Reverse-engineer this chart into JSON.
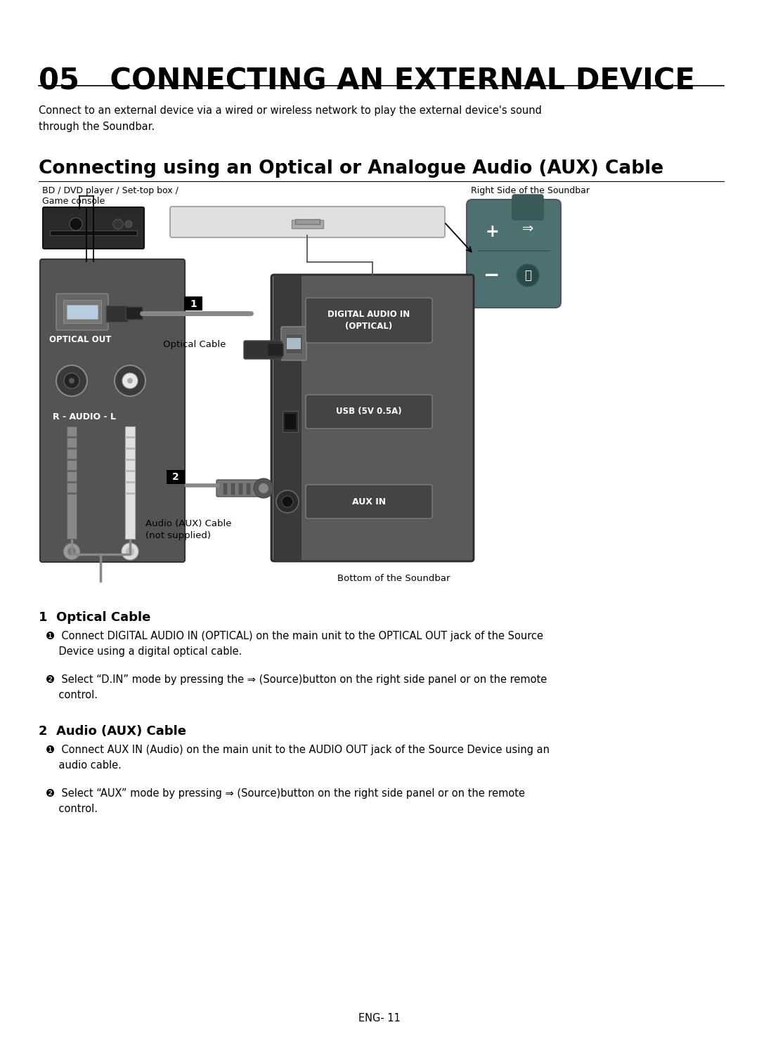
{
  "title": "05   CONNECTING AN EXTERNAL DEVICE",
  "subtitle": "Connecting using an Optical or Analogue Audio (AUX) Cable",
  "intro_text": "Connect to an external device via a wired or wireless network to play the external device's sound\nthrough the Soundbar.",
  "label_bd": "BD / DVD player / Set-top box /",
  "label_game": "Game console",
  "label_right_side": "Right Side of the Soundbar",
  "label_bottom": "Bottom of the Soundbar",
  "label_optical_out": "OPTICAL OUT",
  "label_optical_cable": "Optical Cable",
  "label_aux_cable": "Audio (AUX) Cable\n(not supplied)",
  "label_digital_audio": "DIGITAL AUDIO IN\n(OPTICAL)",
  "label_usb": "USB (5V 0.5A)",
  "label_aux_in": "AUX IN",
  "label_r_audio_l": "R - AUDIO - L",
  "section1_title": "1  Optical Cable",
  "section1_step1": "❶  Connect DIGITAL AUDIO IN (OPTICAL) on the main unit to the OPTICAL OUT jack of the Source\n    Device using a digital optical cable.",
  "section1_step2": "❷  Select “D.IN” mode by pressing the ⇒ (Source)button on the right side panel or on the remote\n    control.",
  "section2_title": "2  Audio (AUX) Cable",
  "section2_step1": "❶  Connect AUX IN (Audio) on the main unit to the AUDIO OUT jack of the Source Device using an\n    audio cable.",
  "section2_step2": "❷  Select “AUX” mode by pressing ⇒ (Source)button on the right side panel or on the remote\n    control.",
  "footer": "ENG- 11",
  "bg_color": "#ffffff"
}
